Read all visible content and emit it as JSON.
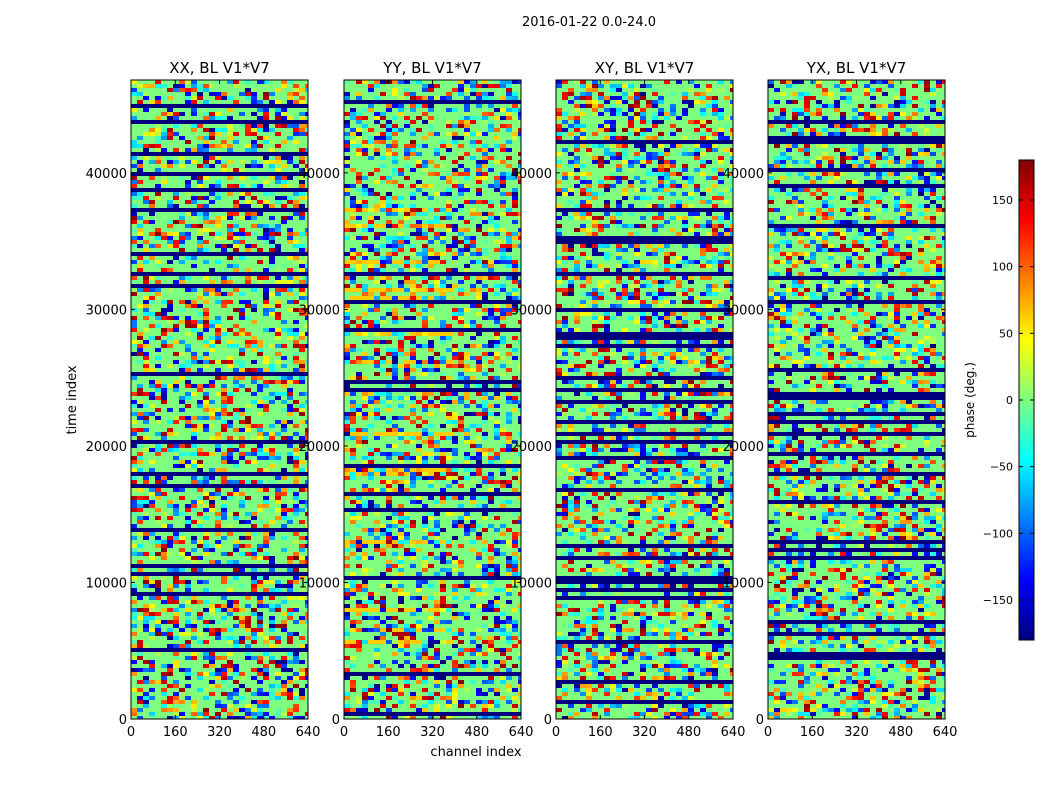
{
  "suptitle": "2016-01-22 0.0-24.0",
  "chart_data": {
    "type": "heatmap",
    "xlabel": "channel index",
    "ylabel": "time index",
    "xlim": [
      0,
      640
    ],
    "ylim": [
      0,
      46800
    ],
    "xticks": [
      0,
      160,
      320,
      480,
      640
    ],
    "yticks": [
      0,
      10000,
      20000,
      30000,
      40000
    ],
    "colorbar": {
      "label": "phase (deg.)",
      "range": [
        -180,
        180
      ],
      "ticks": [
        -150,
        -100,
        -50,
        0,
        50,
        100,
        150
      ],
      "tick_labels": [
        "−150",
        "−100",
        "−50",
        "0",
        "50",
        "100",
        "150"
      ],
      "colormap": "jet",
      "colors": [
        "#00007f",
        "#0000ff",
        "#007fff",
        "#00ffff",
        "#7fff7f",
        "#ffff00",
        "#ff7f00",
        "#ff0000",
        "#7f0000"
      ]
    },
    "panels": [
      {
        "title": "XX, BL V1*V7",
        "polarization": "XX"
      },
      {
        "title": "YY, BL V1*V7",
        "polarization": "YY"
      },
      {
        "title": "XY, BL V1*V7",
        "polarization": "XY"
      },
      {
        "title": "YX, BL V1*V7",
        "polarization": "YX"
      }
    ]
  }
}
